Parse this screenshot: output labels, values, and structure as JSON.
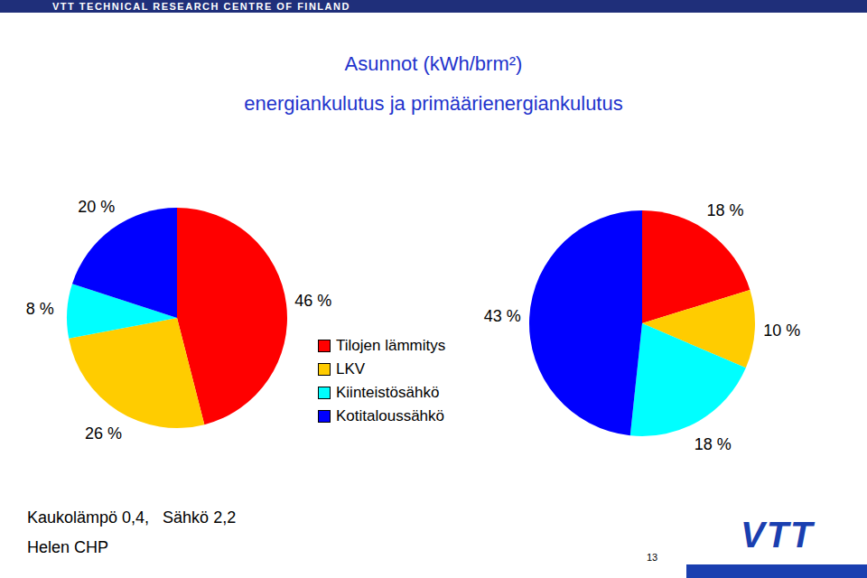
{
  "header": "VTT TECHNICAL RESEARCH CENTRE OF FINLAND",
  "title": "Asunnot (kWh/brm²)",
  "subtitle": "energiankulutus ja primäärienergiankulutus",
  "footer": [
    "Kaukolämpö 0,4,",
    "Sähkö 2,2"
  ],
  "source": "Helen CHP",
  "page_number": 13,
  "logo": "VTT",
  "chart_data": [
    {
      "type": "pie",
      "categories": [
        "Tilojen lämmitys",
        "LKV",
        "Kiinteistösähkö",
        "Kotitaloussähkö"
      ],
      "values": [
        46,
        26,
        8,
        20
      ],
      "value_labels": [
        "46 %",
        "26 %",
        "8 %",
        "20 %"
      ],
      "colors": [
        "#ff0000",
        "#ffcc00",
        "#00ffff",
        "#0000ff"
      ],
      "data_labels": true,
      "legend": "right"
    },
    {
      "type": "pie",
      "categories": [
        "Tilojen lämmitys",
        "LKV",
        "Kiinteistösähkö",
        "Kotitaloussähkö"
      ],
      "values": [
        18,
        10,
        18,
        43
      ],
      "value_labels": [
        "18 %",
        "10 %",
        "18 %",
        "43 %"
      ],
      "colors": [
        "#ff0000",
        "#ffcc00",
        "#00ffff",
        "#0000ff"
      ],
      "data_labels": true
    }
  ]
}
